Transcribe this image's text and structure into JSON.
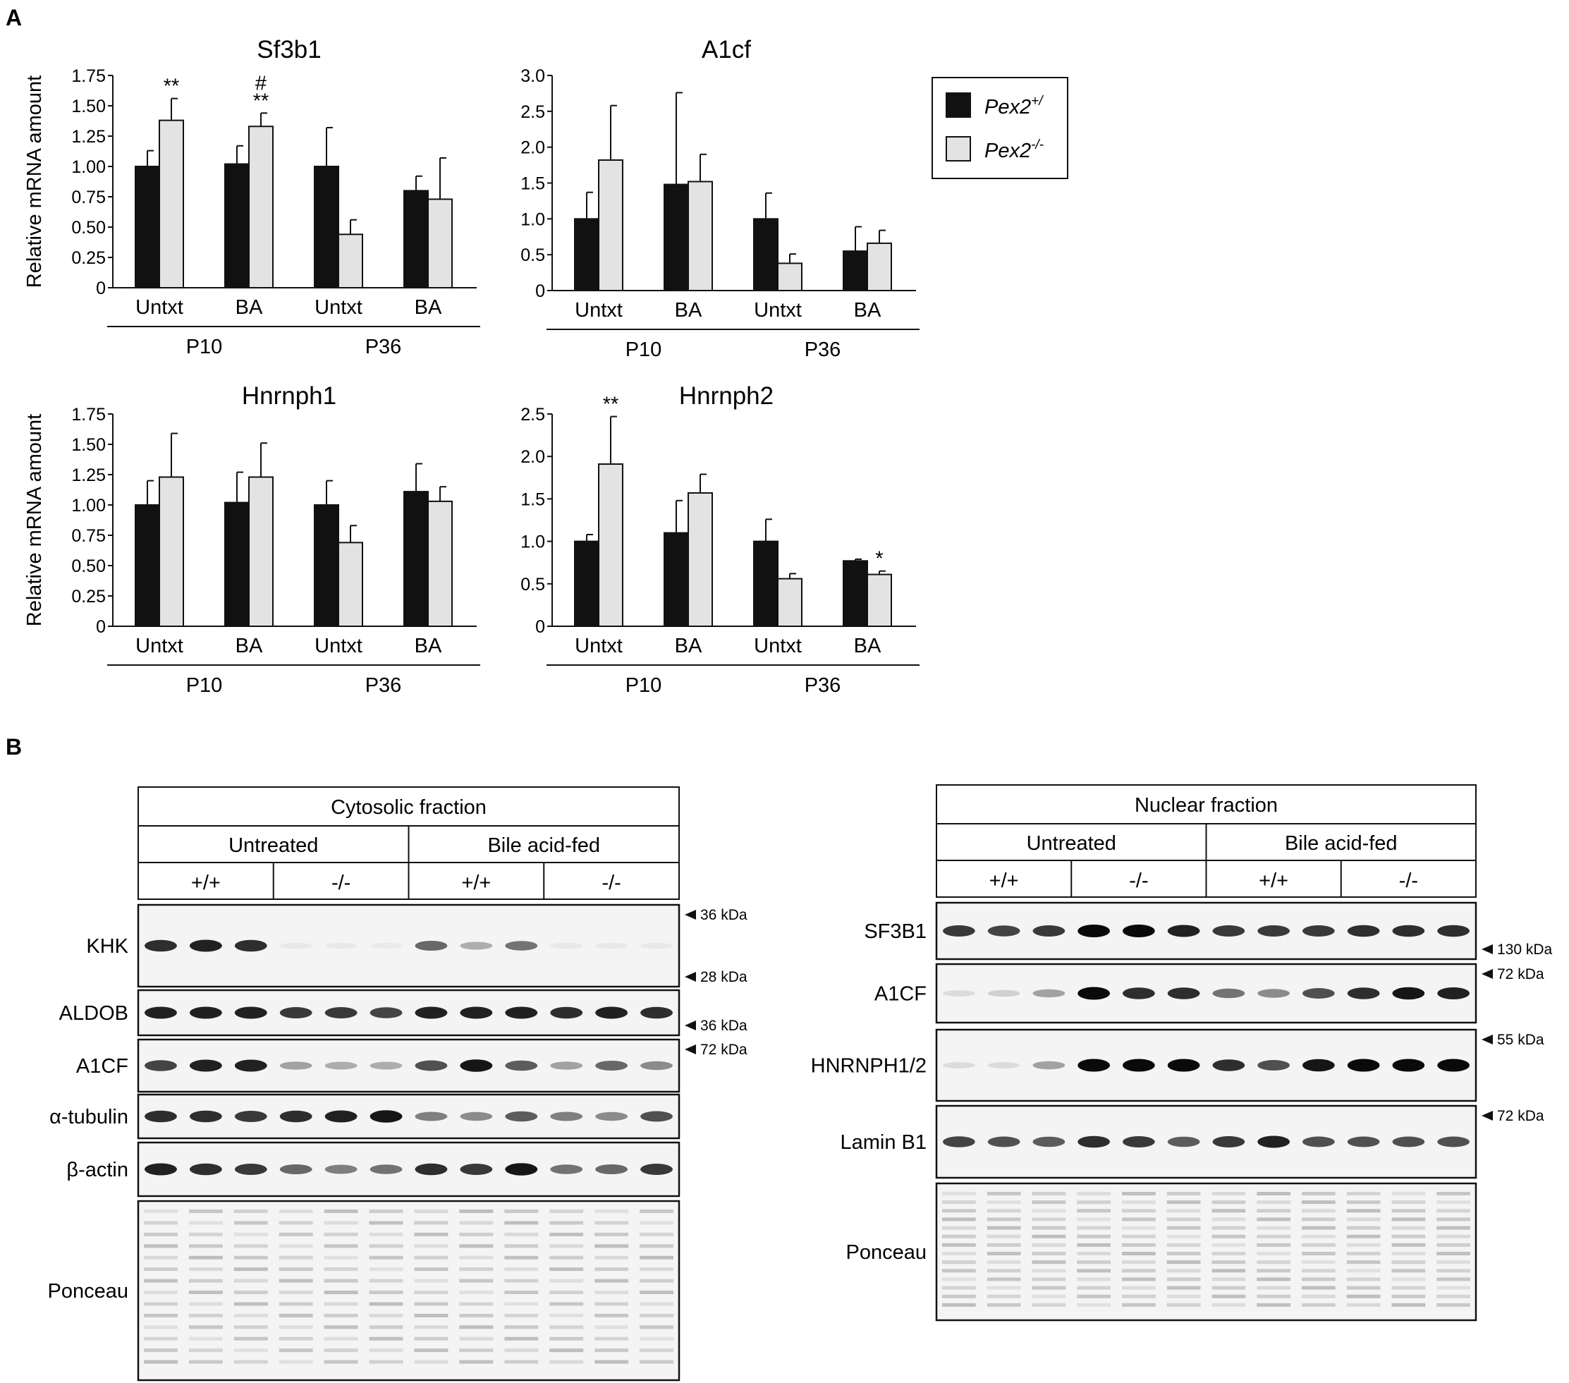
{
  "panels": {
    "a": "A",
    "b": "B"
  },
  "colors": {
    "black_bar": "#111111",
    "light_bar": "#e3e3e3",
    "band": "#0a0a0a",
    "membrane": "#f4f4f4"
  },
  "legend": {
    "items": [
      {
        "label": "Pex2",
        "sup": "+/",
        "color": "#111111"
      },
      {
        "label": "Pex2",
        "sup": "-/-",
        "color": "#e3e3e3"
      }
    ]
  },
  "chart_data": [
    {
      "type": "bar",
      "title": "Sf3b1",
      "ylabel": "Relative mRNA amount",
      "ylim": [
        0,
        1.75
      ],
      "yticks": [
        "1.75",
        "1.50",
        "1.25",
        "1.00",
        "0.75",
        "0.50",
        "0.25",
        "0"
      ],
      "categories": [
        "Untxt",
        "BA",
        "Untxt",
        "BA"
      ],
      "groups": [
        "P10",
        "P36"
      ],
      "series": [
        {
          "values": [
            1.0,
            1.02,
            1.0,
            0.8
          ],
          "errors": [
            0.13,
            0.15,
            0.32,
            0.12
          ]
        },
        {
          "values": [
            1.38,
            1.33,
            0.44,
            0.73
          ],
          "errors": [
            0.18,
            0.11,
            0.12,
            0.34
          ]
        }
      ],
      "annotations": [
        {
          "category": 0,
          "series": 1,
          "text": "**"
        },
        {
          "category": 1,
          "series": 1,
          "text": "**"
        },
        {
          "category": 1,
          "series": 1,
          "text": "#"
        }
      ]
    },
    {
      "type": "bar",
      "title": "A1cf",
      "ylabel": "",
      "ylim": [
        0,
        3.0
      ],
      "yticks": [
        "3.0",
        "2.5",
        "2.0",
        "1.5",
        "1.0",
        "0.5",
        "0"
      ],
      "categories": [
        "Untxt",
        "BA",
        "Untxt",
        "BA"
      ],
      "groups": [
        "P10",
        "P36"
      ],
      "series": [
        {
          "values": [
            1.0,
            1.48,
            1.0,
            0.55
          ],
          "errors": [
            0.37,
            1.28,
            0.36,
            0.34
          ]
        },
        {
          "values": [
            1.82,
            1.52,
            0.38,
            0.66
          ],
          "errors": [
            0.76,
            0.38,
            0.13,
            0.18
          ]
        }
      ],
      "annotations": []
    },
    {
      "type": "bar",
      "title": "Hnrnph1",
      "ylabel": "Relative mRNA amount",
      "ylim": [
        0,
        1.75
      ],
      "yticks": [
        "1.75",
        "1.50",
        "1.25",
        "1.00",
        "0.75",
        "0.50",
        "0.25",
        "0"
      ],
      "categories": [
        "Untxt",
        "BA",
        "Untxt",
        "BA"
      ],
      "groups": [
        "P10",
        "P36"
      ],
      "series": [
        {
          "values": [
            1.0,
            1.02,
            1.0,
            1.11
          ],
          "errors": [
            0.2,
            0.25,
            0.2,
            0.23
          ]
        },
        {
          "values": [
            1.23,
            1.23,
            0.69,
            1.03
          ],
          "errors": [
            0.36,
            0.28,
            0.14,
            0.12
          ]
        }
      ],
      "annotations": []
    },
    {
      "type": "bar",
      "title": "Hnrnph2",
      "ylabel": "",
      "ylim": [
        0,
        2.5
      ],
      "yticks": [
        "2.5",
        "2.0",
        "1.5",
        "1.0",
        "0.5",
        "0"
      ],
      "categories": [
        "Untxt",
        "BA",
        "Untxt",
        "BA"
      ],
      "groups": [
        "P10",
        "P36"
      ],
      "series": [
        {
          "values": [
            1.0,
            1.1,
            1.0,
            0.77
          ],
          "errors": [
            0.08,
            0.38,
            0.26,
            0.02
          ]
        },
        {
          "values": [
            1.91,
            1.57,
            0.56,
            0.61
          ],
          "errors": [
            0.56,
            0.22,
            0.06,
            0.04
          ]
        }
      ],
      "annotations": [
        {
          "category": 0,
          "series": 1,
          "text": "**"
        },
        {
          "category": 3,
          "series": 1,
          "text": "*"
        }
      ]
    }
  ],
  "blots": {
    "cytosolic": {
      "title": "Cytosolic fraction",
      "conditions": [
        "Untreated",
        "Bile acid-fed"
      ],
      "genotypes": [
        "+/+",
        "-/-",
        "+/+",
        "-/-"
      ],
      "rows": [
        {
          "label": "KHK",
          "intensity": [
            0.85,
            0.9,
            0.85,
            0.05,
            0.05,
            0.04,
            0.6,
            0.3,
            0.55,
            0.05,
            0.05,
            0.05
          ]
        },
        {
          "label": "ALDOB",
          "intensity": [
            0.9,
            0.9,
            0.9,
            0.8,
            0.8,
            0.75,
            0.9,
            0.9,
            0.9,
            0.85,
            0.9,
            0.85
          ]
        },
        {
          "label": "A1CF",
          "intensity": [
            0.75,
            0.9,
            0.9,
            0.35,
            0.3,
            0.3,
            0.7,
            0.95,
            0.65,
            0.35,
            0.6,
            0.45
          ]
        },
        {
          "label": "α-tubulin",
          "intensity": [
            0.85,
            0.85,
            0.8,
            0.85,
            0.9,
            0.95,
            0.5,
            0.45,
            0.65,
            0.5,
            0.45,
            0.7
          ]
        },
        {
          "label": "β-actin",
          "intensity": [
            0.9,
            0.85,
            0.8,
            0.6,
            0.5,
            0.55,
            0.85,
            0.8,
            0.95,
            0.55,
            0.6,
            0.8
          ]
        },
        {
          "label": "Ponceau",
          "intensity": []
        }
      ],
      "markers": [
        {
          "label": "36 kDa",
          "row": 0,
          "pos": "top"
        },
        {
          "label": "28 kDa",
          "row": 0,
          "pos": "bottom"
        },
        {
          "label": "36 kDa",
          "row": 1,
          "pos": "bottom"
        },
        {
          "label": "72 kDa",
          "row": 2,
          "pos": "top"
        }
      ]
    },
    "nuclear": {
      "title": "Nuclear fraction",
      "conditions": [
        "Untreated",
        "Bile acid-fed"
      ],
      "genotypes": [
        "+/+",
        "-/-",
        "+/+",
        "-/-"
      ],
      "rows": [
        {
          "label": "SF3B1",
          "intensity": [
            0.8,
            0.75,
            0.8,
            1.0,
            1.0,
            0.9,
            0.8,
            0.8,
            0.8,
            0.85,
            0.85,
            0.85
          ]
        },
        {
          "label": "A1CF",
          "intensity": [
            0.1,
            0.15,
            0.35,
            1.0,
            0.85,
            0.85,
            0.55,
            0.45,
            0.7,
            0.85,
            0.95,
            0.9
          ]
        },
        {
          "label": "HNRNPH1/2",
          "intensity": [
            0.1,
            0.1,
            0.35,
            1.0,
            1.0,
            1.0,
            0.85,
            0.7,
            0.95,
            1.0,
            1.0,
            1.0
          ]
        },
        {
          "label": "Lamin B1",
          "intensity": [
            0.75,
            0.7,
            0.65,
            0.85,
            0.8,
            0.65,
            0.8,
            0.9,
            0.7,
            0.7,
            0.7,
            0.7
          ]
        },
        {
          "label": "Ponceau",
          "intensity": []
        }
      ],
      "markers": [
        {
          "label": "130 kDa",
          "row": 0,
          "pos": "bottom"
        },
        {
          "label": "72 kDa",
          "row": 1,
          "pos": "top"
        },
        {
          "label": "55 kDa",
          "row": 2,
          "pos": "top"
        },
        {
          "label": "72 kDa",
          "row": 3,
          "pos": "top"
        }
      ]
    }
  }
}
